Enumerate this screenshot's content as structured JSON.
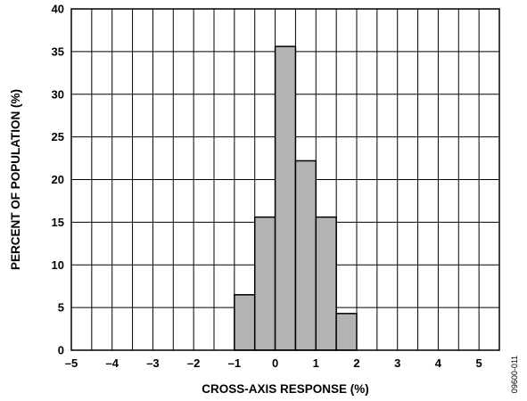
{
  "chart_data": {
    "type": "bar",
    "title": "",
    "xlabel": "CROSS-AXIS RESPONSE (%)",
    "ylabel": "PERCENT OF POPULATION (%)",
    "xlim": [
      -5,
      5.5
    ],
    "ylim": [
      0,
      40
    ],
    "x_ticks": [
      -5,
      -4,
      -3,
      -2,
      -1,
      0,
      1,
      2,
      3,
      4,
      5
    ],
    "x_tick_labels": [
      "–5",
      "–4",
      "–3",
      "–2",
      "–1",
      "0",
      "1",
      "2",
      "3",
      "4",
      "5"
    ],
    "y_ticks": [
      0,
      5,
      10,
      15,
      20,
      25,
      30,
      35,
      40
    ],
    "grid": true,
    "bar_color": "#b3b3b3",
    "bins": [
      {
        "x0": -1.0,
        "x1": -0.5,
        "value": 6.5
      },
      {
        "x0": -0.5,
        "x1": 0.0,
        "value": 15.6
      },
      {
        "x0": 0.0,
        "x1": 0.5,
        "value": 35.6
      },
      {
        "x0": 0.5,
        "x1": 1.0,
        "value": 22.2
      },
      {
        "x0": 1.0,
        "x1": 1.5,
        "value": 15.6
      },
      {
        "x0": 1.5,
        "x1": 2.0,
        "value": 4.3
      }
    ]
  },
  "figure_id": "09600-011"
}
